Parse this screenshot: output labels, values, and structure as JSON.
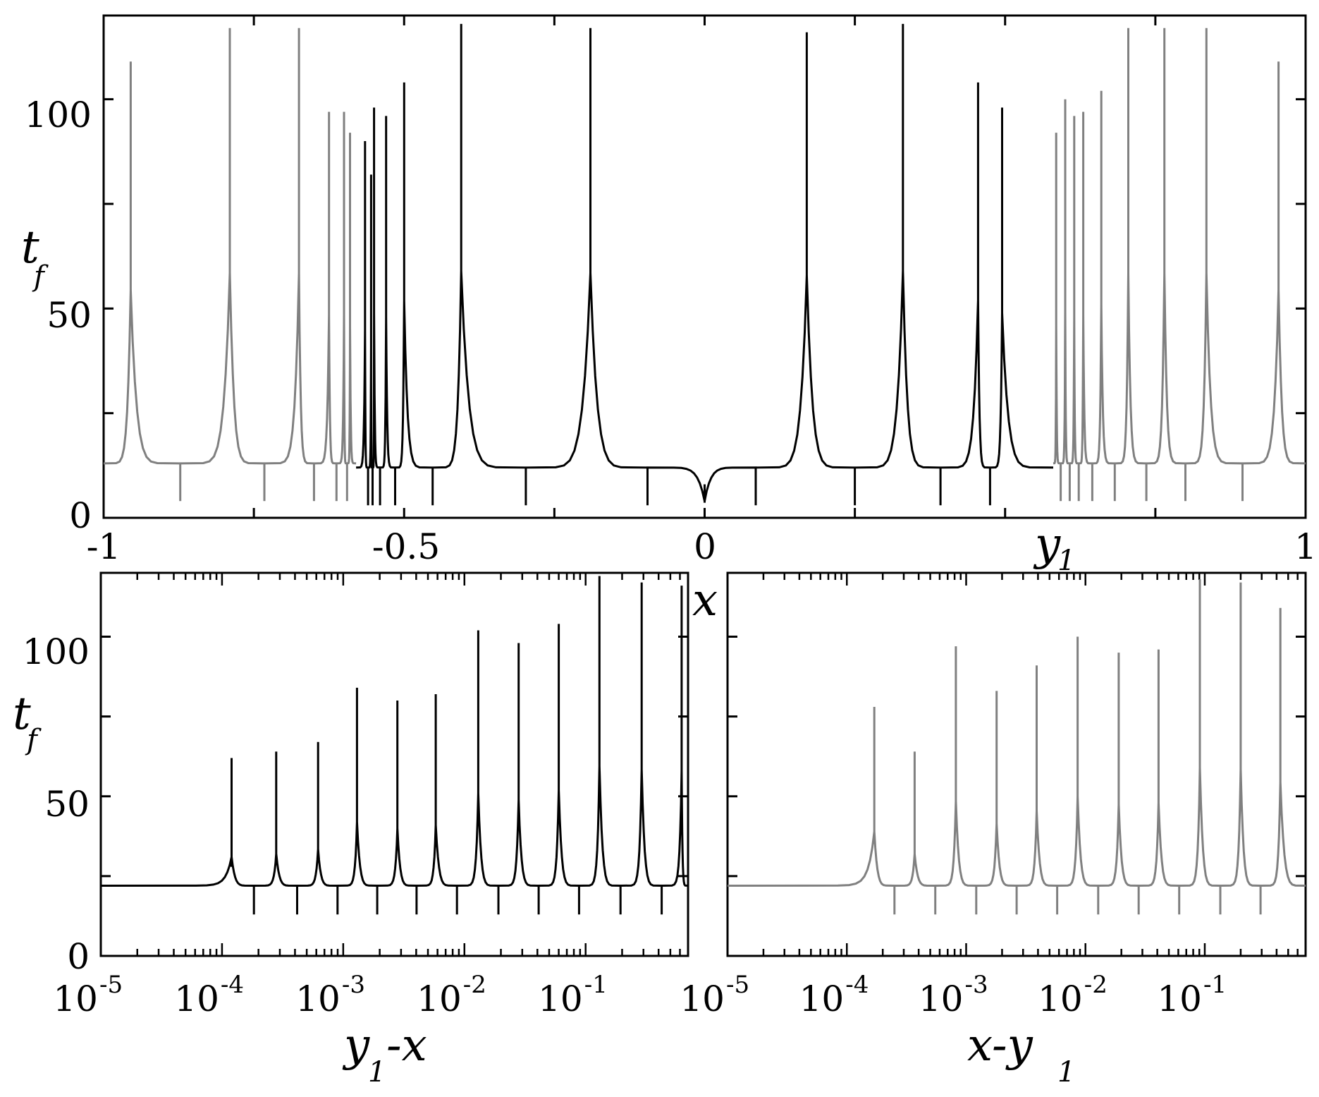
{
  "chart_data": [
    {
      "type": "line",
      "panel": "top",
      "ylabel": "t",
      "ylabel_sub": "f",
      "xlabel": "x",
      "annotation": "y",
      "annotation_sub": "1",
      "xlim": [
        -1,
        1
      ],
      "ylim": [
        0,
        120
      ],
      "x_ticks": [
        "-1",
        "-0.5",
        "0",
        "1"
      ],
      "y_ticks": [
        "0",
        "50",
        "100"
      ],
      "series": [
        {
          "color": "#000000",
          "x_range": [
            -0.58,
            0.58
          ],
          "cusp_x": [
            -0.565,
            -0.555,
            -0.55,
            -0.53,
            -0.5,
            -0.405,
            -0.19,
            0.0,
            0.17,
            0.33,
            0.455,
            0.495
          ],
          "cusp_peak": [
            90,
            82,
            98,
            96,
            104,
            118,
            117,
            8,
            116,
            118,
            104,
            98
          ],
          "floor_y": 12
        },
        {
          "color": "#808080",
          "x_range": [
            -1,
            -0.58
          ],
          "cusp_x": [
            -0.955,
            -0.79,
            -0.675,
            -0.625,
            -0.6,
            -0.59
          ],
          "cusp_peak": [
            109,
            117,
            117,
            97,
            97,
            92
          ],
          "floor_y": 13
        },
        {
          "color": "#808080",
          "x_range": [
            0.58,
            1
          ],
          "cusp_x": [
            0.585,
            0.6,
            0.615,
            0.63,
            0.66,
            0.705,
            0.765,
            0.835,
            0.955
          ],
          "cusp_peak": [
            92,
            100,
            96,
            97,
            102,
            117,
            117,
            117,
            109
          ],
          "floor_y": 13
        }
      ]
    },
    {
      "type": "line",
      "panel": "bottom-left",
      "ylabel": "t",
      "ylabel_sub": "f",
      "xlabel": "y",
      "xlabel_sub": "1",
      "xlabel_suffix": "-x",
      "x_scale": "log",
      "xlim": [
        1e-05,
        0.7
      ],
      "ylim": [
        0,
        120
      ],
      "x_ticks": [
        "10",
        "10",
        "10",
        "10",
        "10"
      ],
      "x_tick_exponents": [
        "-5",
        "-4",
        "-3",
        "-2",
        "-1"
      ],
      "y_ticks": [
        "0",
        "50",
        "100"
      ],
      "series": [
        {
          "color": "#000000",
          "cusp_x": [
            0.00012,
            0.00028,
            0.00062,
            0.0013,
            0.0028,
            0.0058,
            0.013,
            0.028,
            0.06,
            0.13,
            0.29,
            0.62
          ],
          "cusp_peak": [
            62,
            64,
            67,
            84,
            80,
            82,
            102,
            98,
            104,
            119,
            117,
            116
          ],
          "floor_y": 22
        }
      ]
    },
    {
      "type": "line",
      "panel": "bottom-right",
      "xlabel": "x-y",
      "xlabel_sub": "1",
      "x_scale": "log",
      "xlim": [
        1e-05,
        0.7
      ],
      "ylim": [
        0,
        120
      ],
      "x_ticks": [
        "10",
        "10",
        "10",
        "10",
        "10"
      ],
      "x_tick_exponents": [
        "-5",
        "-4",
        "-3",
        "-2",
        "-1"
      ],
      "series": [
        {
          "color": "#808080",
          "cusp_x": [
            0.00017,
            0.00037,
            0.00082,
            0.0018,
            0.0039,
            0.0086,
            0.019,
            0.041,
            0.091,
            0.2,
            0.43
          ],
          "cusp_peak": [
            78,
            64,
            97,
            83,
            91,
            100,
            95,
            96,
            118,
            117,
            109
          ],
          "floor_y": 22
        }
      ]
    }
  ]
}
